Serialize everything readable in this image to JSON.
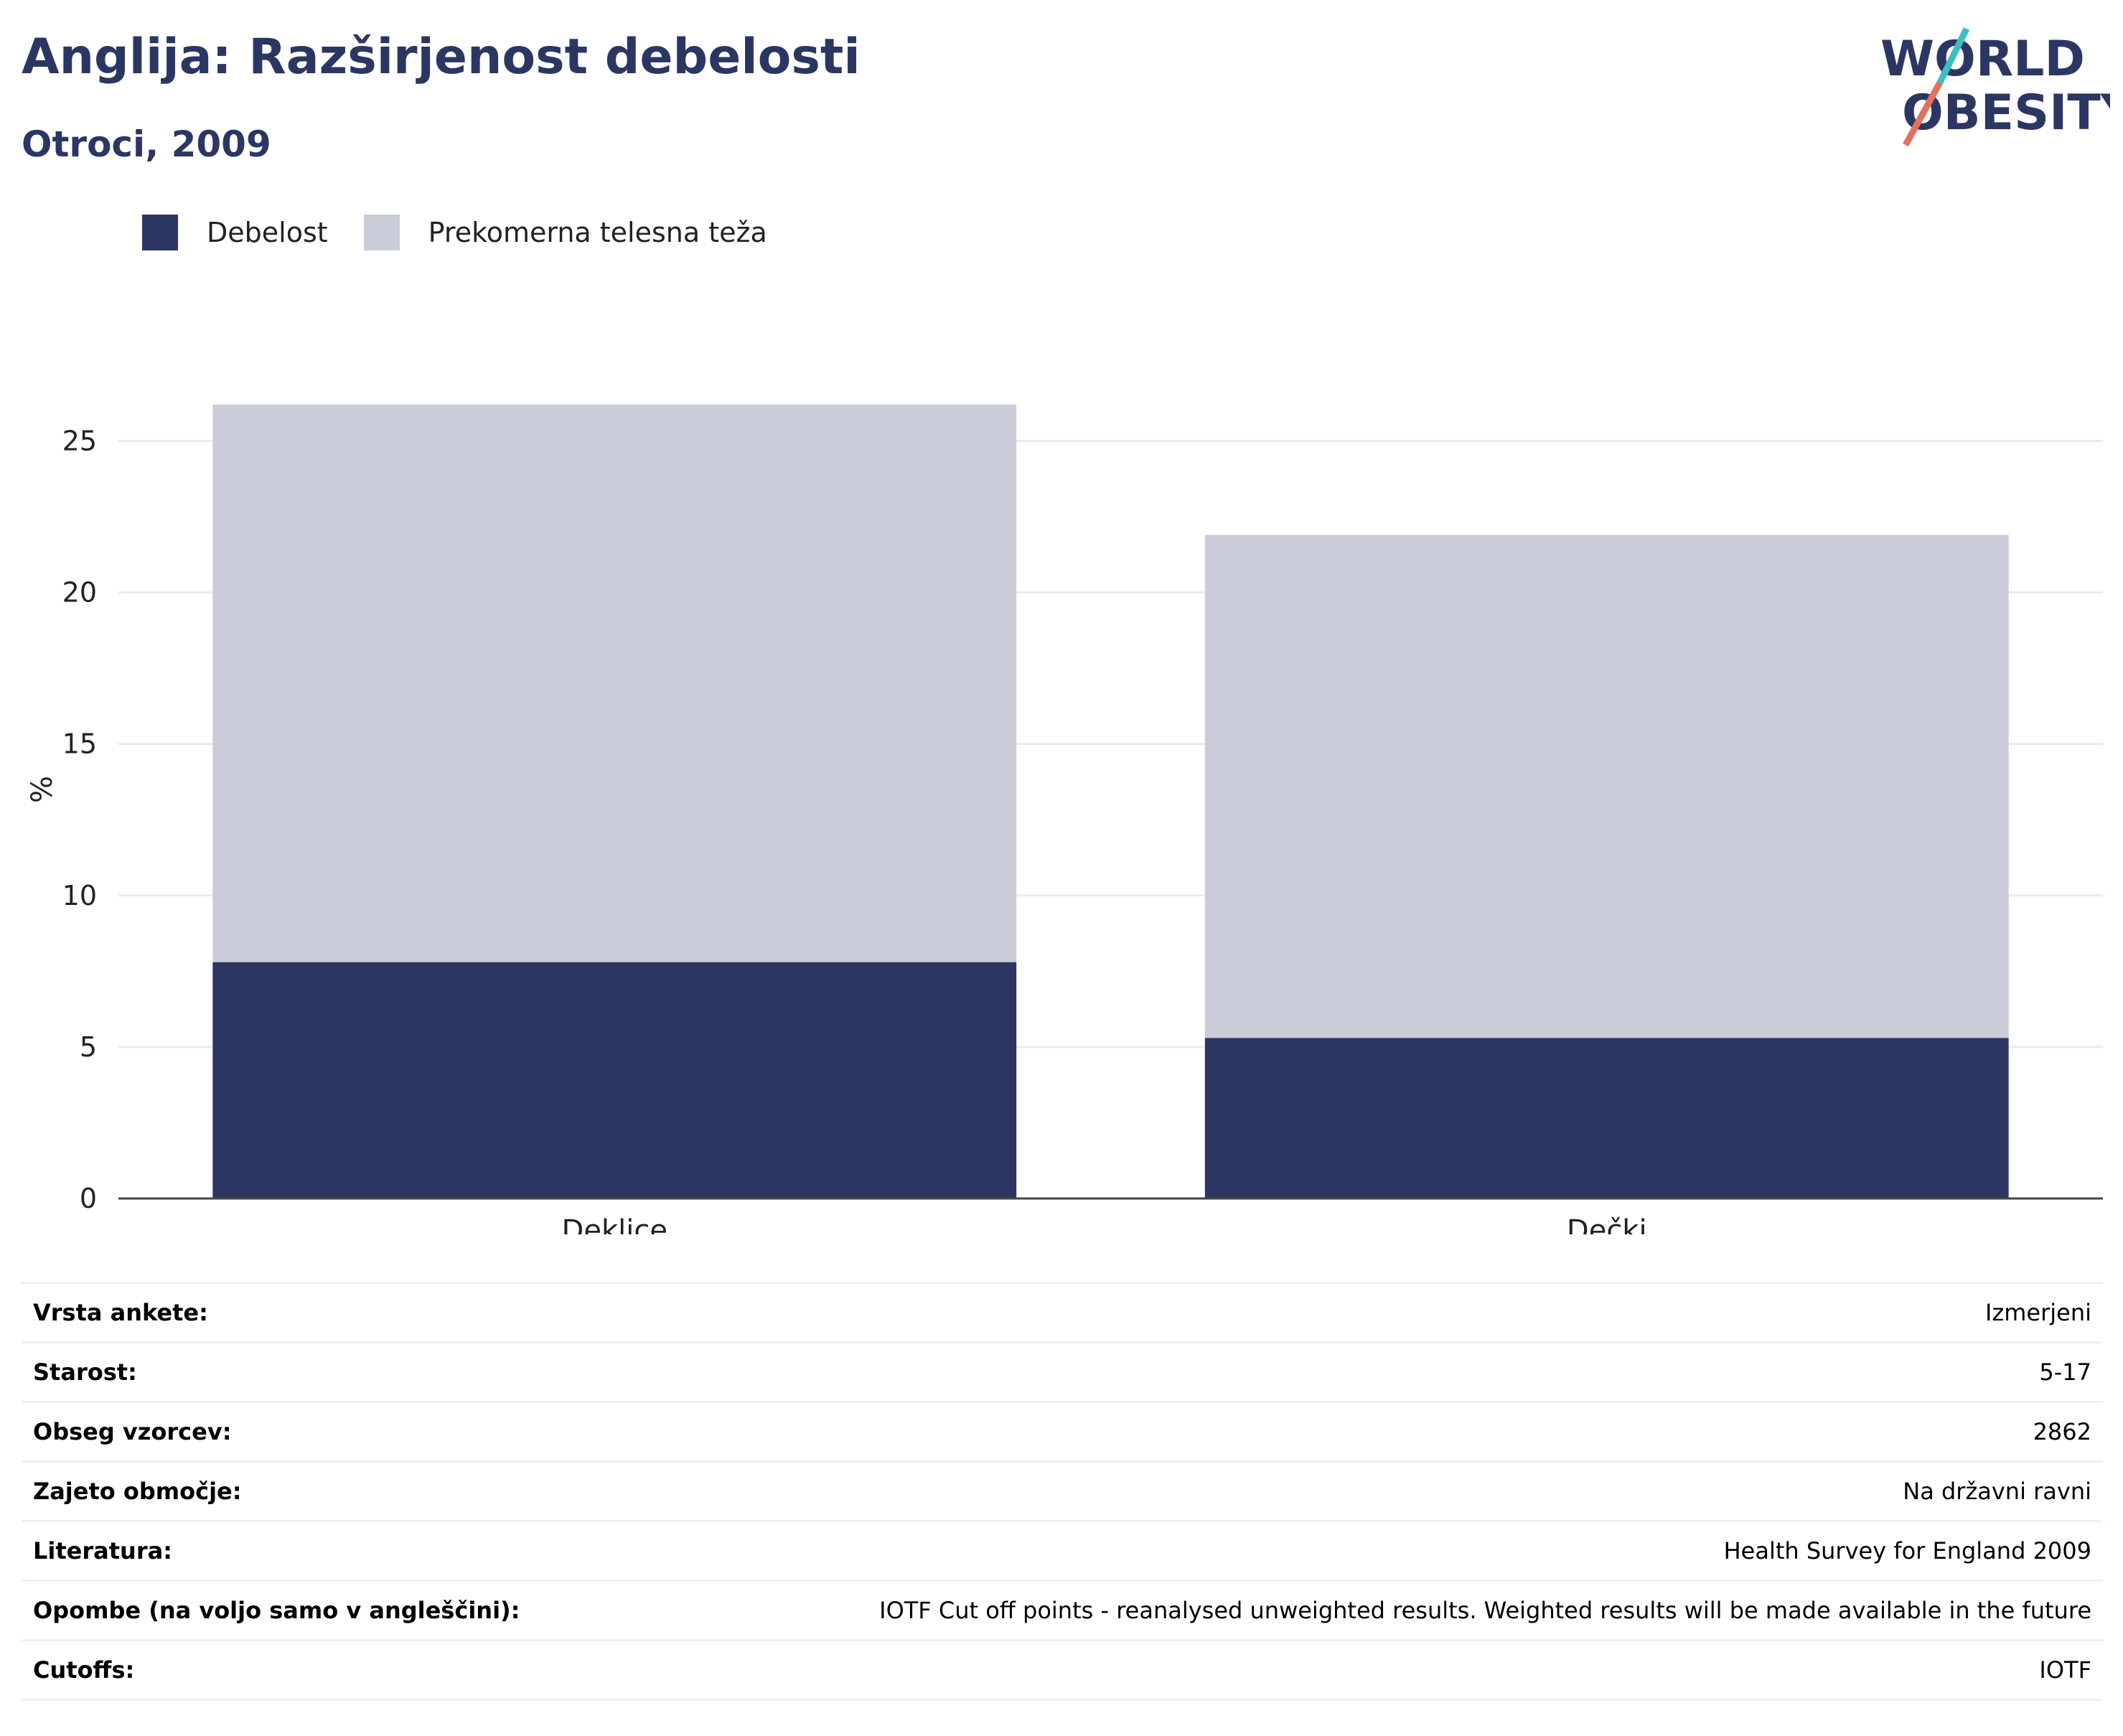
{
  "header": {
    "title": "Anglija: Razširjenost debelosti",
    "subtitle": "Otroci, 2009"
  },
  "logo": {
    "line1": "WORLD",
    "line2": "OBESITY"
  },
  "colors": {
    "obesity": "#2b3663",
    "overweight": "#cacdd8",
    "text": "#2b3663",
    "slash_teal": "#3bbfc2",
    "slash_red": "#e4705f"
  },
  "chart_data": {
    "type": "bar",
    "stacked": true,
    "categories": [
      "Deklice",
      "Dečki"
    ],
    "series": [
      {
        "name": "Debelost",
        "values": [
          7.8,
          5.3
        ],
        "color": "#2b3663"
      },
      {
        "name": "Prekomerna telesna teža",
        "values": [
          18.4,
          16.6
        ],
        "color": "#cacdd8"
      }
    ],
    "ylabel": "%",
    "xlabel": "",
    "ylim": [
      0,
      27
    ],
    "yticks": [
      0,
      5,
      10,
      15,
      20,
      25
    ],
    "grid": true,
    "legend": "top-left"
  },
  "info": [
    {
      "key": "Vrsta ankete:",
      "value": "Izmerjeni"
    },
    {
      "key": "Starost:",
      "value": "5-17"
    },
    {
      "key": "Obseg vzorcev:",
      "value": "2862"
    },
    {
      "key": "Zajeto območje:",
      "value": "Na državni ravni"
    },
    {
      "key": "Literatura:",
      "value": "Health Survey for England 2009"
    },
    {
      "key": "Opombe (na voljo samo v angleščini):",
      "value": "IOTF Cut off points - reanalysed unweighted results. Weighted results will be made available in the future"
    },
    {
      "key": "Cutoffs:",
      "value": "IOTF"
    }
  ]
}
